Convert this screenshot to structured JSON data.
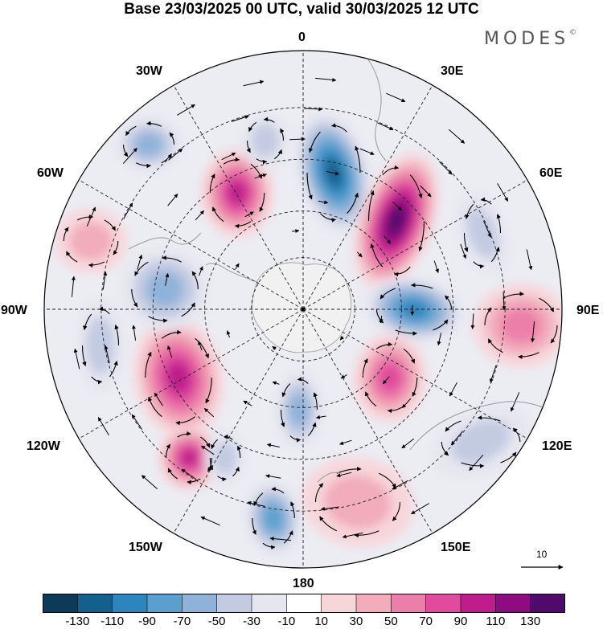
{
  "header": {
    "title": "Base 23/03/2025 00 UTC, valid 30/03/2025 12 UTC",
    "brand": "MODES",
    "brand_mark": "©"
  },
  "map": {
    "projection": "south-polar-stereographic",
    "longitude_labels": {
      "lon_0": "0",
      "lon_30e": "30E",
      "lon_60e": "60E",
      "lon_90e": "90E",
      "lon_120e": "120E",
      "lon_150e": "150E",
      "lon_180": "180",
      "lon_150w": "150W",
      "lon_120w": "120W",
      "lon_90w": "90W",
      "lon_60w": "60W",
      "lon_30w": "30W"
    },
    "anomaly_centers": [
      {
        "type": "negative",
        "value": -110
      },
      {
        "type": "positive",
        "value": 130
      },
      {
        "type": "negative",
        "value": -100
      },
      {
        "type": "positive",
        "value": 60
      },
      {
        "type": "positive",
        "value": 80
      },
      {
        "type": "negative",
        "value": -50
      },
      {
        "type": "positive",
        "value": 90
      },
      {
        "type": "negative",
        "value": -60
      },
      {
        "type": "positive",
        "value": 40
      },
      {
        "type": "negative",
        "value": -50
      },
      {
        "type": "negative",
        "value": -40
      },
      {
        "type": "positive",
        "value": 40
      },
      {
        "type": "negative",
        "value": -70
      },
      {
        "type": "positive",
        "value": 90
      },
      {
        "type": "negative",
        "value": -40
      },
      {
        "type": "negative",
        "value": -40
      },
      {
        "type": "positive",
        "value": 90
      },
      {
        "type": "negative",
        "value": -40
      },
      {
        "type": "negative",
        "value": -30
      }
    ],
    "vector_reference": "10"
  },
  "colorbar": {
    "colors": [
      "#0d3b57",
      "#12618d",
      "#2d85bd",
      "#5aa0cf",
      "#8fb2d9",
      "#c2cbe2",
      "#e6e6f0",
      "#ffffff",
      "#f7d6da",
      "#f2acba",
      "#eb7fa9",
      "#e04b9e",
      "#be1d8d",
      "#8d0c80",
      "#4f0a6b"
    ],
    "tick_labels": [
      "-130",
      "-110",
      "-90",
      "-70",
      "-50",
      "-30",
      "-10",
      "10",
      "30",
      "50",
      "70",
      "90",
      "110",
      "130"
    ]
  }
}
